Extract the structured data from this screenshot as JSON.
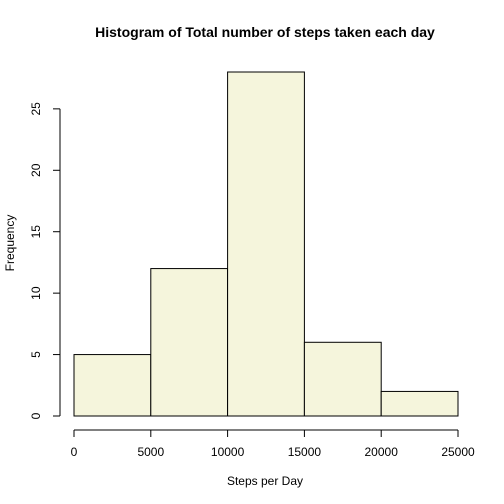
{
  "chart_data": {
    "type": "bar",
    "title": "Histogram of Total number of steps taken each day",
    "xlabel": "Steps per Day",
    "ylabel": "Frequency",
    "bins": [
      {
        "start": 0,
        "end": 5000,
        "count": 5
      },
      {
        "start": 5000,
        "end": 10000,
        "count": 12
      },
      {
        "start": 10000,
        "end": 15000,
        "count": 28
      },
      {
        "start": 15000,
        "end": 20000,
        "count": 6
      },
      {
        "start": 20000,
        "end": 25000,
        "count": 2
      }
    ],
    "xlim": [
      0,
      25000
    ],
    "ylim": [
      0,
      28
    ],
    "x_ticks": [
      0,
      5000,
      10000,
      15000,
      20000,
      25000
    ],
    "y_ticks": [
      0,
      5,
      10,
      15,
      20,
      25
    ],
    "bar_color": "#F5F5DC",
    "edge_color": "#000000",
    "grid": false,
    "legend": "none"
  }
}
